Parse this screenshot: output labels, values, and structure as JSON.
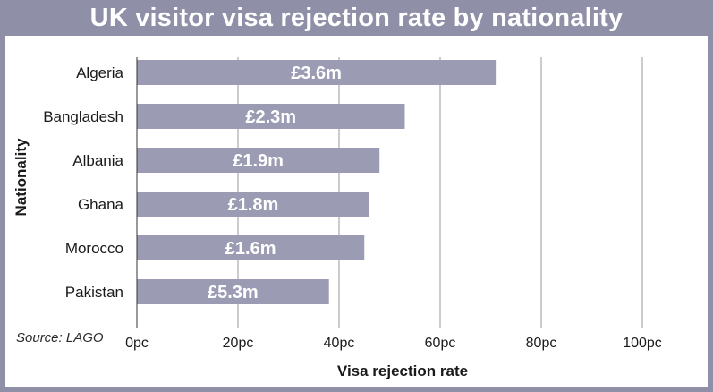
{
  "title": "UK visitor visa rejection rate by nationality",
  "source": "Source: LAGO",
  "chart_data": {
    "type": "bar",
    "orientation": "horizontal",
    "title": "UK visitor visa rejection rate by nationality",
    "xlabel": "Visa rejection rate",
    "ylabel": "Nationality",
    "categories": [
      "Algeria",
      "Bangladesh",
      "Albania",
      "Ghana",
      "Morocco",
      "Pakistan"
    ],
    "values": [
      71,
      53,
      48,
      46,
      45,
      38
    ],
    "bar_labels": [
      "£3.6m",
      "£2.3m",
      "£1.9m",
      "£1.8m",
      "£1.6m",
      "£5.3m"
    ],
    "xlim": [
      0,
      100
    ],
    "xticks": [
      0,
      20,
      40,
      60,
      80,
      100
    ],
    "xtick_labels": [
      "0pc",
      "20pc",
      "40pc",
      "60pc",
      "80pc",
      "100pc"
    ],
    "grid": "vertical",
    "colors": {
      "bar": "#9b9bb3",
      "frame": "#8f8fa8",
      "grid": "#9a9a9a",
      "text": "#1a1a1a",
      "bar_label": "#ffffff"
    }
  }
}
